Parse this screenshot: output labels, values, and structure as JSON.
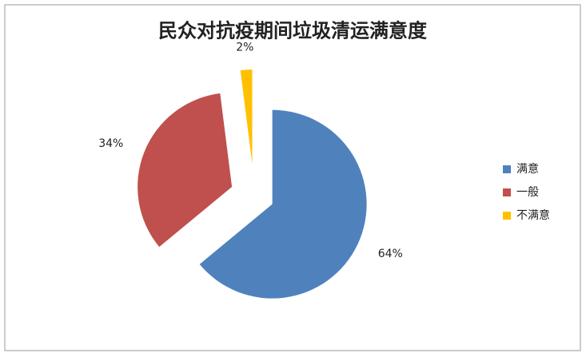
{
  "chart_data": {
    "type": "pie",
    "title": "民众对抗疫期间垃圾清运满意度",
    "categories": [
      "满意",
      "一般",
      "不满意"
    ],
    "values": [
      64,
      34,
      2
    ],
    "value_labels": [
      "64%",
      "34%",
      "2%"
    ],
    "colors": [
      "#4f81bd",
      "#c0504d",
      "#ffc000"
    ],
    "legend": "right"
  }
}
